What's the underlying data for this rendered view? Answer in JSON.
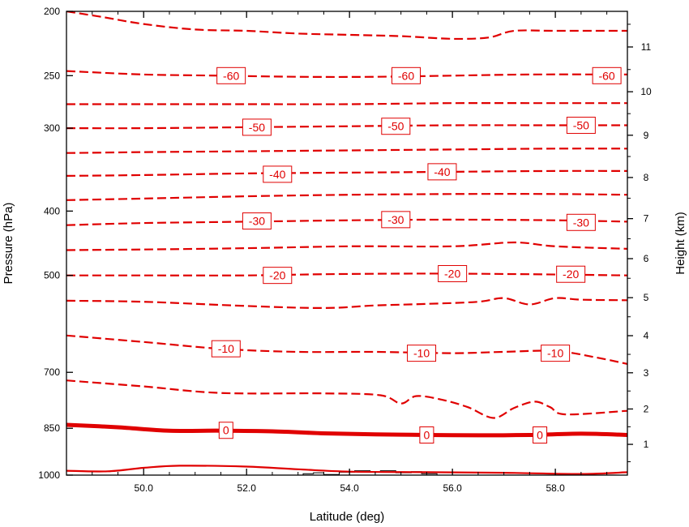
{
  "chart_data": {
    "type": "contour",
    "xlabel": "Latitude (deg)",
    "ylabel": "Pressure (hPa)",
    "ylabel_right": "Height (km)",
    "xlim": [
      48.5,
      59.4
    ],
    "ylim": [
      1000,
      200
    ],
    "y_scale": "log",
    "grid": false,
    "x_ticks": [
      {
        "value": 50,
        "label": "50.0"
      },
      {
        "value": 52,
        "label": "52.0"
      },
      {
        "value": 54,
        "label": "54.0"
      },
      {
        "value": 56,
        "label": "56.0"
      },
      {
        "value": 58,
        "label": "58.0"
      }
    ],
    "y_ticks": [
      {
        "value": 200,
        "label": "200"
      },
      {
        "value": 250,
        "label": "250"
      },
      {
        "value": 300,
        "label": "300"
      },
      {
        "value": 400,
        "label": "400"
      },
      {
        "value": 500,
        "label": "500"
      },
      {
        "value": 700,
        "label": "700"
      },
      {
        "value": 850,
        "label": "850"
      },
      {
        "value": 1000,
        "label": "1000"
      }
    ],
    "height_ticks": [
      {
        "value": 1,
        "label": "1"
      },
      {
        "value": 2,
        "label": "2"
      },
      {
        "value": 3,
        "label": "3"
      },
      {
        "value": 4,
        "label": "4"
      },
      {
        "value": 5,
        "label": "5"
      },
      {
        "value": 6,
        "label": "6"
      },
      {
        "value": 7,
        "label": "7"
      },
      {
        "value": 8,
        "label": "8"
      },
      {
        "value": 9,
        "label": "9"
      },
      {
        "value": 10,
        "label": "10"
      },
      {
        "value": 11,
        "label": "11"
      }
    ],
    "contour_color": "#e00000",
    "terrain_color": "#000000",
    "isotherms": [
      {
        "value": -65,
        "labeled": false,
        "style": "dashed",
        "points": [
          [
            48.5,
            200
          ],
          [
            49.2,
            204
          ],
          [
            50.0,
            209
          ],
          [
            51.0,
            213
          ],
          [
            52.0,
            214
          ],
          [
            53.0,
            216
          ],
          [
            54.0,
            217
          ],
          [
            55.0,
            218
          ],
          [
            56.0,
            220
          ],
          [
            56.7,
            219
          ],
          [
            57.2,
            214
          ],
          [
            58.0,
            214
          ],
          [
            59.4,
            214
          ]
        ]
      },
      {
        "value": -60,
        "labeled": true,
        "style": "dashed",
        "points": [
          [
            48.5,
            246
          ],
          [
            50.0,
            249
          ],
          [
            51.5,
            250
          ],
          [
            53.0,
            251
          ],
          [
            54.5,
            251
          ],
          [
            56.0,
            250
          ],
          [
            57.5,
            249
          ],
          [
            59.4,
            249
          ]
        ],
        "labels": [
          [
            51.7,
            250
          ],
          [
            55.1,
            250
          ],
          [
            59.0,
            250
          ]
        ]
      },
      {
        "value": -55,
        "labeled": false,
        "style": "dashed",
        "points": [
          [
            48.5,
            276
          ],
          [
            50.0,
            276
          ],
          [
            52.0,
            276
          ],
          [
            54.0,
            276
          ],
          [
            56.0,
            275
          ],
          [
            58.0,
            275
          ],
          [
            59.4,
            275
          ]
        ]
      },
      {
        "value": -50,
        "labeled": true,
        "style": "dashed",
        "points": [
          [
            48.5,
            300
          ],
          [
            50.0,
            300
          ],
          [
            52.0,
            299
          ],
          [
            54.0,
            298
          ],
          [
            56.0,
            297
          ],
          [
            58.0,
            297
          ],
          [
            59.4,
            297
          ]
        ],
        "labels": [
          [
            52.2,
            299
          ],
          [
            54.9,
            298
          ],
          [
            58.5,
            297
          ]
        ]
      },
      {
        "value": -45,
        "labeled": false,
        "style": "dashed",
        "points": [
          [
            48.5,
            327
          ],
          [
            50.0,
            326
          ],
          [
            52.0,
            325
          ],
          [
            54.0,
            324
          ],
          [
            56.0,
            323
          ],
          [
            58.0,
            322
          ],
          [
            59.4,
            322
          ]
        ]
      },
      {
        "value": -40,
        "labeled": true,
        "style": "dashed",
        "points": [
          [
            48.5,
            354
          ],
          [
            50.0,
            353
          ],
          [
            52.0,
            351
          ],
          [
            54.0,
            350
          ],
          [
            56.0,
            349
          ],
          [
            58.0,
            348
          ],
          [
            59.4,
            348
          ]
        ],
        "labels": [
          [
            52.6,
            352
          ],
          [
            55.8,
            349
          ]
        ]
      },
      {
        "value": -35,
        "labeled": false,
        "style": "dashed",
        "points": [
          [
            48.5,
            385
          ],
          [
            50.0,
            383
          ],
          [
            52.0,
            380
          ],
          [
            54.0,
            378
          ],
          [
            56.0,
            377
          ],
          [
            58.0,
            377
          ],
          [
            59.4,
            378
          ]
        ]
      },
      {
        "value": -30,
        "labeled": true,
        "style": "dashed",
        "points": [
          [
            48.5,
            420
          ],
          [
            50.0,
            417
          ],
          [
            52.0,
            415
          ],
          [
            54.0,
            413
          ],
          [
            56.0,
            412
          ],
          [
            58.0,
            413
          ],
          [
            59.4,
            415
          ]
        ],
        "labels": [
          [
            52.2,
            414
          ],
          [
            54.9,
            412
          ],
          [
            58.5,
            416
          ]
        ]
      },
      {
        "value": -25,
        "labeled": false,
        "style": "dashed",
        "points": [
          [
            48.5,
            458
          ],
          [
            50.0,
            457
          ],
          [
            52.0,
            455
          ],
          [
            54.0,
            452
          ],
          [
            56.0,
            452
          ],
          [
            57.2,
            446
          ],
          [
            58.0,
            452
          ],
          [
            59.4,
            456
          ]
        ]
      },
      {
        "value": -20,
        "labeled": true,
        "style": "dashed",
        "points": [
          [
            48.5,
            500
          ],
          [
            50.0,
            500
          ],
          [
            52.0,
            500
          ],
          [
            53.5,
            498
          ],
          [
            55.0,
            497
          ],
          [
            56.0,
            497
          ],
          [
            57.5,
            498
          ],
          [
            59.4,
            500
          ]
        ],
        "labels": [
          [
            52.6,
            500
          ],
          [
            56.0,
            497
          ],
          [
            58.3,
            498
          ]
        ]
      },
      {
        "value": -15,
        "labeled": false,
        "style": "dashed",
        "points": [
          [
            48.5,
            546
          ],
          [
            50.0,
            548
          ],
          [
            52.0,
            556
          ],
          [
            53.5,
            560
          ],
          [
            54.5,
            555
          ],
          [
            55.5,
            552
          ],
          [
            56.5,
            548
          ],
          [
            57.0,
            541
          ],
          [
            57.5,
            553
          ],
          [
            58.0,
            541
          ],
          [
            58.5,
            544
          ],
          [
            59.4,
            545
          ]
        ]
      },
      {
        "value": -10,
        "labeled": true,
        "style": "dashed",
        "points": [
          [
            48.5,
            616
          ],
          [
            50.0,
            630
          ],
          [
            51.5,
            645
          ],
          [
            53.0,
            652
          ],
          [
            54.5,
            652
          ],
          [
            56.0,
            655
          ],
          [
            57.0,
            652
          ],
          [
            58.0,
            650
          ],
          [
            58.8,
            665
          ],
          [
            59.4,
            680
          ]
        ],
        "labels": [
          [
            51.6,
            645
          ],
          [
            55.4,
            655
          ],
          [
            58.0,
            655
          ]
        ]
      },
      {
        "value": -5,
        "labeled": false,
        "style": "dashed",
        "points": [
          [
            48.5,
            720
          ],
          [
            50.0,
            735
          ],
          [
            51.5,
            752
          ],
          [
            53.5,
            753
          ],
          [
            54.6,
            758
          ],
          [
            55.0,
            780
          ],
          [
            55.3,
            760
          ],
          [
            55.8,
            770
          ],
          [
            56.3,
            790
          ],
          [
            56.8,
            820
          ],
          [
            57.2,
            792
          ],
          [
            57.6,
            775
          ],
          [
            57.9,
            790
          ],
          [
            58.2,
            810
          ],
          [
            59.4,
            800
          ]
        ]
      },
      {
        "value": 0,
        "labeled": true,
        "style": "bold",
        "points": [
          [
            48.5,
            840
          ],
          [
            49.5,
            847
          ],
          [
            50.5,
            857
          ],
          [
            51.5,
            857
          ],
          [
            52.5,
            859
          ],
          [
            53.5,
            865
          ],
          [
            54.5,
            868
          ],
          [
            55.5,
            870
          ],
          [
            56.5,
            871
          ],
          [
            57.5,
            870
          ],
          [
            58.5,
            866
          ],
          [
            59.4,
            870
          ]
        ],
        "labels": [
          [
            51.6,
            856
          ],
          [
            55.5,
            870
          ],
          [
            57.7,
            870
          ]
        ]
      },
      {
        "value": 5,
        "labeled": false,
        "style": "solid",
        "points": [
          [
            48.5,
            985
          ],
          [
            49.3,
            987
          ],
          [
            50.0,
            975
          ],
          [
            50.7,
            968
          ],
          [
            52.0,
            971
          ],
          [
            53.0,
            980
          ],
          [
            54.0,
            988
          ],
          [
            55.5,
            990
          ],
          [
            57.0,
            992
          ],
          [
            58.5,
            996
          ],
          [
            59.4,
            990
          ]
        ]
      }
    ],
    "terrain": [
      [
        53.1,
        1000
      ],
      [
        53.1,
        995
      ],
      [
        53.3,
        995
      ],
      [
        53.3,
        992
      ],
      [
        53.5,
        992
      ],
      [
        53.5,
        998
      ],
      [
        53.8,
        998
      ],
      [
        53.8,
        990
      ],
      [
        54.1,
        990
      ],
      [
        54.1,
        985
      ],
      [
        54.4,
        985
      ],
      [
        54.4,
        990
      ],
      [
        54.6,
        990
      ],
      [
        54.6,
        985
      ],
      [
        54.9,
        985
      ],
      [
        54.9,
        992
      ],
      [
        55.2,
        992
      ],
      [
        55.2,
        988
      ],
      [
        55.4,
        988
      ],
      [
        55.4,
        995
      ],
      [
        55.7,
        995
      ],
      [
        55.7,
        1000
      ]
    ]
  }
}
